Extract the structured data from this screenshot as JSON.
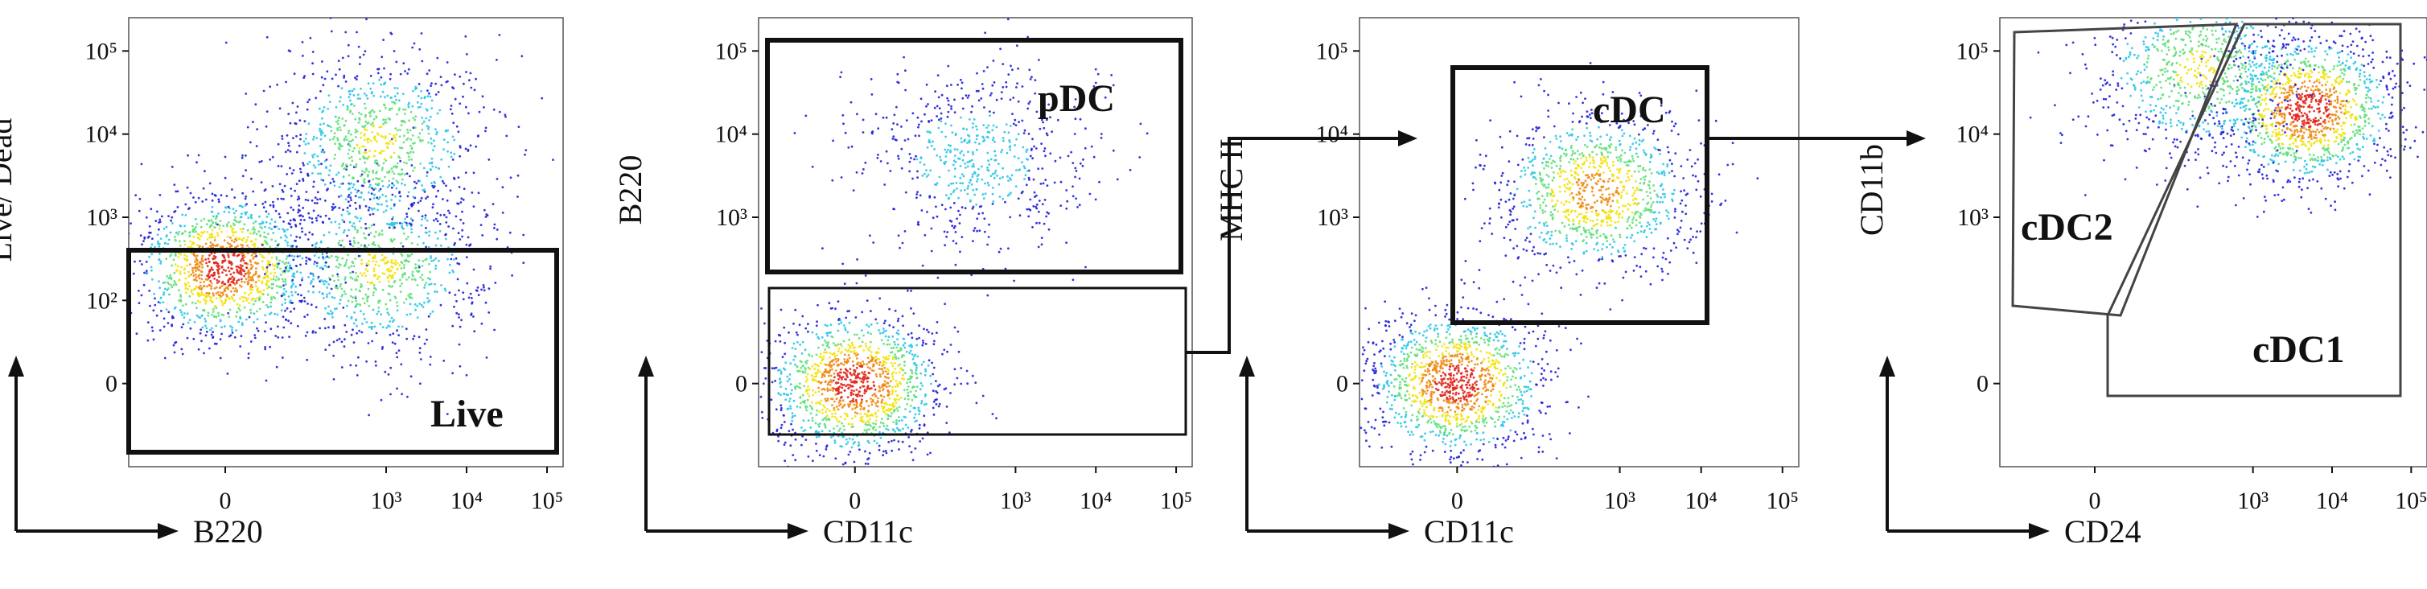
{
  "chart_data": [
    {
      "type": "scatter",
      "xlabel": "B220",
      "ylabel": "Live/ Dead",
      "x_scale": "biexponential",
      "y_scale": "biexponential",
      "x_ticks": [
        "0",
        "10³",
        "10⁴",
        "10⁵"
      ],
      "y_ticks": [
        "0",
        "10²",
        "10³",
        "10⁴",
        "10⁵"
      ],
      "populations": [
        {
          "x_center": 0,
          "y_center": 250,
          "density": "highest"
        },
        {
          "x_center": 800,
          "y_center": 250,
          "density": "medium"
        },
        {
          "x_center": 800,
          "y_center": 8000,
          "density": "medium"
        }
      ],
      "gates": [
        {
          "label": "Live",
          "x_range": [
            "<0",
            "10⁵"
          ],
          "y_range": [
            "<0",
            "10³"
          ]
        }
      ]
    },
    {
      "type": "scatter",
      "xlabel": "CD11c",
      "ylabel": "B220",
      "x_scale": "biexponential",
      "y_scale": "biexponential",
      "x_ticks": [
        "0",
        "10³",
        "10⁴",
        "10⁵"
      ],
      "y_ticks": [
        "0",
        "10³",
        "10⁴",
        "10⁵"
      ],
      "populations": [
        {
          "x_center": 0,
          "y_center": 0,
          "density": "highest"
        },
        {
          "x_center": 300,
          "y_center": 5000,
          "density": "low"
        }
      ],
      "gates": [
        {
          "label": "pDC",
          "x_range": [
            "<0",
            "10⁵"
          ],
          "y_range": [
            "10³",
            "10⁵"
          ]
        },
        {
          "label": "",
          "x_range": [
            "<0",
            "10⁵"
          ],
          "y_range": [
            "<0",
            "10³"
          ]
        }
      ]
    },
    {
      "type": "scatter",
      "xlabel": "CD11c",
      "ylabel": "MHC II",
      "x_scale": "biexponential",
      "y_scale": "biexponential",
      "x_ticks": [
        "0",
        "10³",
        "10⁴",
        "10⁵"
      ],
      "y_ticks": [
        "0",
        "10³",
        "10⁴",
        "10⁵"
      ],
      "populations": [
        {
          "x_center": 0,
          "y_center": 0,
          "density": "highest"
        },
        {
          "x_center": 500,
          "y_center": 2000,
          "density": "high"
        }
      ],
      "gates": [
        {
          "label": "cDC",
          "x_range": [
            "0",
            "10⁴"
          ],
          "y_range": [
            "5×10²",
            "10⁵"
          ]
        }
      ]
    },
    {
      "type": "scatter",
      "xlabel": "CD24",
      "ylabel": "CD11b",
      "x_scale": "biexponential",
      "y_scale": "biexponential",
      "x_ticks": [
        "0",
        "10³",
        "10⁴",
        "10⁵"
      ],
      "y_ticks": [
        "0",
        "10³",
        "10⁴",
        "10⁵"
      ],
      "populations": [
        {
          "x_center": 5000,
          "y_center": 20000,
          "density": "highest"
        },
        {
          "x_center": 200,
          "y_center": 60000,
          "density": "medium"
        }
      ],
      "gates": [
        {
          "label": "cDC2",
          "x_range": [
            "<0",
            "3×10³"
          ],
          "y_range": [
            "5×10²",
            "10⁵"
          ]
        },
        {
          "label": "cDC1",
          "x_range": [
            "3×10²",
            "10⁵"
          ],
          "y_range": [
            "<0",
            "10⁵"
          ]
        }
      ]
    }
  ],
  "colors": {
    "low_density": "#1f1fd6",
    "medium_density": "#2bc7e6",
    "high_density": "#f2e20c",
    "highest_density": "#e0261a",
    "gate": "#111111",
    "axis": "#111111"
  }
}
